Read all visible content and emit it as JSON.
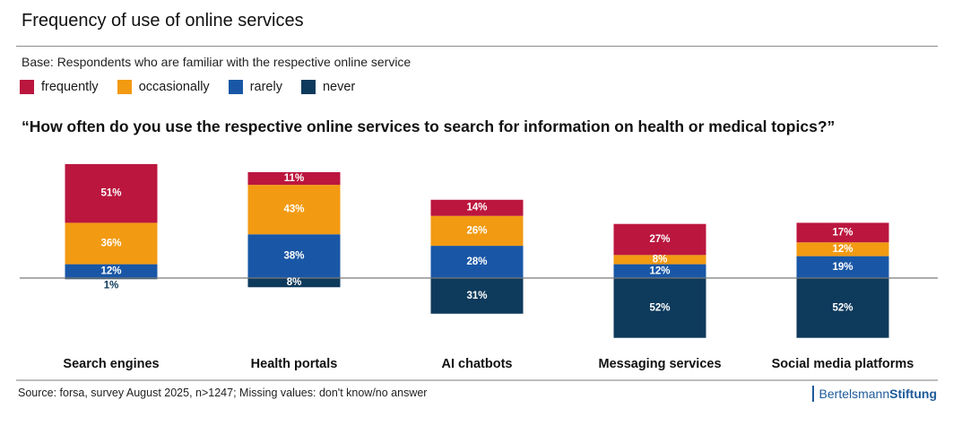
{
  "header": {
    "title": "Frequency of use of online services",
    "base": "Base: Respondents who are familiar with the respective online service",
    "question": "“How often do you use the respective online services to search for information on health or medical topics?”"
  },
  "legend": [
    {
      "label": "frequently",
      "color": "#bb163e"
    },
    {
      "label": "occasionally",
      "color": "#f29a12"
    },
    {
      "label": "rarely",
      "color": "#1957a6"
    },
    {
      "label": "never",
      "color": "#0e3a5c"
    }
  ],
  "footer": {
    "source": "Source: forsa, survey August 2025, n>1247; Missing values: don't know/no answer",
    "logo_part1": "Bertelsmann",
    "logo_part2": "Stiftung"
  },
  "chart_data": {
    "type": "bar",
    "stacked": "diverging",
    "title": "Frequency of use of online services",
    "subtitle": "“How often do you use the respective online services to search for information on health or medical topics?”",
    "xlabel": "",
    "ylabel": "",
    "unit": "%",
    "baseline_note": "frequently, occasionally and rarely stacked above the baseline; never below",
    "legend_position": "top-left",
    "grid": false,
    "categories": [
      "Search engines",
      "Health portals",
      "AI chatbots",
      "Messaging services",
      "Social media platforms"
    ],
    "series": [
      {
        "name": "frequently",
        "color": "#bb163e",
        "values": [
          51,
          11,
          14,
          27,
          17
        ]
      },
      {
        "name": "occasionally",
        "color": "#f29a12",
        "values": [
          36,
          43,
          26,
          8,
          12
        ]
      },
      {
        "name": "rarely",
        "color": "#1957a6",
        "values": [
          12,
          38,
          28,
          12,
          19
        ]
      },
      {
        "name": "never",
        "color": "#0e3a5c",
        "values": [
          1,
          8,
          31,
          52,
          52
        ]
      }
    ]
  }
}
